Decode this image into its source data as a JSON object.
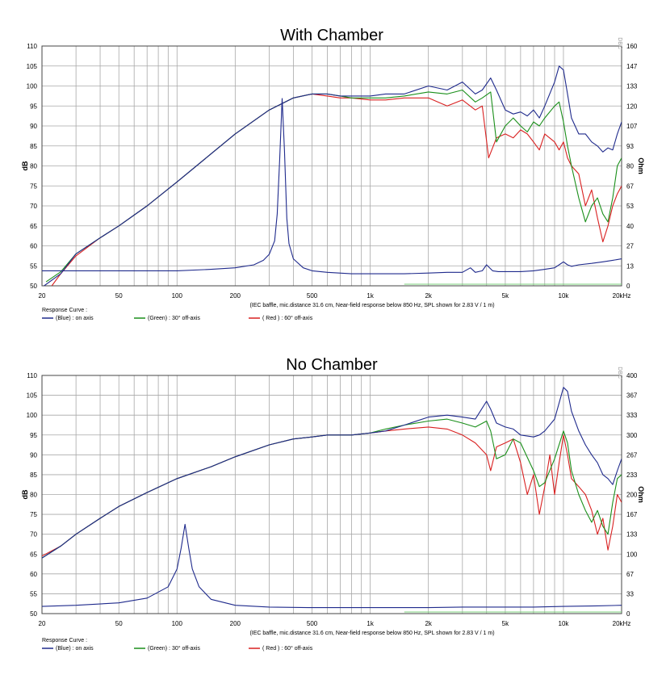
{
  "chart_data": [
    {
      "type": "line",
      "title": "With Chamber",
      "xlabel": "(IEC baffle, mic.distance 31.6 cm, Near-field response below 850 Hz, SPL shown for 2.83 V / 1 m)",
      "ylabel": "dB",
      "y2label": "Ohm",
      "xscale": "log",
      "xlim": [
        20,
        20000
      ],
      "ylim": [
        50,
        110
      ],
      "y2lim": [
        0,
        160
      ],
      "x_ticks": [
        "20",
        "50",
        "100",
        "200",
        "500",
        "1k",
        "2k",
        "5k",
        "10k",
        "20kHz"
      ],
      "y_ticks": [
        "110",
        "105",
        "100",
        "95",
        "90",
        "85",
        "80",
        "75",
        "70",
        "65",
        "60",
        "55",
        "50"
      ],
      "y2_ticks": [
        "160",
        "147",
        "133",
        "120",
        "107",
        "93",
        "80",
        "67",
        "53",
        "40",
        "27",
        "13",
        "0"
      ],
      "watermark": "DBC",
      "legend_title": "Response Curve :",
      "legend": [
        {
          "label": "(Blue) : on axis",
          "color": "#1f2a8c"
        },
        {
          "label": "(Green) : 30° off-axis",
          "color": "#1a8f1a"
        },
        {
          "label": "( Red ) : 60° off-axis",
          "color": "#d92020"
        }
      ],
      "series": [
        {
          "name": "(Blue) : on axis",
          "color": "#1f2a8c",
          "x": [
            20.5,
            25,
            30,
            40,
            50,
            70,
            100,
            150,
            200,
            300,
            400,
            500,
            600,
            700,
            800,
            1000,
            1200,
            1500,
            2000,
            2500,
            3000,
            3500,
            3800,
            4200,
            4500,
            5000,
            5500,
            6000,
            6500,
            7000,
            7500,
            8000,
            9000,
            9500,
            10000,
            10500,
            11000,
            12000,
            13000,
            14000,
            15000,
            16000,
            17000,
            18000,
            19000,
            20000
          ],
          "values": [
            50,
            53,
            58,
            62,
            65,
            70,
            76,
            83,
            88,
            94,
            97,
            98,
            98,
            97.5,
            97.5,
            97.5,
            98,
            98,
            100,
            99,
            101,
            98,
            99,
            102,
            99,
            94,
            93,
            93.5,
            92.5,
            94,
            92,
            95,
            101,
            105,
            104,
            98,
            92,
            88,
            88,
            86,
            85,
            83.5,
            84.5,
            84,
            88,
            91
          ]
        },
        {
          "name": "(Green) : 30° off-axis",
          "color": "#1a8f1a",
          "x": [
            21,
            25,
            30,
            40,
            50,
            70,
            100,
            150,
            200,
            300,
            400,
            500,
            600,
            700,
            800,
            1000,
            1200,
            1500,
            2000,
            2500,
            3000,
            3500,
            3800,
            4200,
            4500,
            5000,
            5500,
            6000,
            6500,
            7000,
            7500,
            8000,
            9000,
            9500,
            10000,
            10500,
            11000,
            12000,
            13000,
            14000,
            15000,
            16000,
            17000,
            18000,
            19000,
            20000
          ],
          "values": [
            51,
            53.5,
            58,
            62,
            65,
            70,
            76,
            83,
            88,
            94,
            97,
            98,
            98,
            97.5,
            97,
            97,
            97,
            97.5,
            98.5,
            98,
            99,
            96,
            97,
            98.5,
            86,
            90,
            92,
            90,
            88.5,
            91,
            90,
            92,
            95,
            96,
            91,
            85,
            80,
            72,
            66,
            70,
            72,
            68,
            66,
            72,
            80,
            82
          ]
        },
        {
          "name": "( Red ) : 60° off-axis",
          "color": "#d92020",
          "x": [
            22.5,
            25,
            30,
            40,
            50,
            70,
            100,
            150,
            200,
            300,
            400,
            500,
            600,
            700,
            800,
            1000,
            1200,
            1500,
            2000,
            2500,
            3000,
            3500,
            3800,
            4100,
            4500,
            5000,
            5500,
            6000,
            6500,
            7000,
            7500,
            8000,
            9000,
            9500,
            10000,
            10500,
            11000,
            12000,
            13000,
            14000,
            15000,
            16000,
            17000,
            18000,
            19000,
            20000
          ],
          "values": [
            50,
            53,
            57.5,
            62,
            65,
            70,
            76,
            83,
            88,
            94,
            97,
            98,
            97.5,
            97,
            97,
            96.5,
            96.5,
            97,
            97,
            95,
            96.5,
            94,
            95,
            82,
            87,
            88,
            87,
            89,
            88,
            86,
            84,
            88,
            86,
            84,
            86,
            82,
            80,
            78,
            70,
            74,
            67,
            61,
            65,
            70,
            73,
            75
          ]
        },
        {
          "name": "Impedance",
          "color": "#1f2a8c",
          "axis": "y2",
          "x": [
            20,
            50,
            100,
            150,
            200,
            250,
            280,
            300,
            320,
            330,
            340,
            350,
            360,
            370,
            380,
            400,
            450,
            500,
            600,
            800,
            1000,
            1500,
            2000,
            2500,
            3000,
            3300,
            3500,
            3800,
            4000,
            4300,
            4600,
            5000,
            6000,
            7000,
            8000,
            9000,
            9500,
            10000,
            10500,
            11000,
            12000,
            14000,
            16000,
            18000,
            20000
          ],
          "values": [
            10,
            10,
            10,
            11,
            12,
            14,
            17,
            21,
            30,
            48,
            85,
            125,
            90,
            45,
            28,
            18,
            12,
            10,
            9,
            8,
            8,
            8,
            8.5,
            9,
            9,
            12,
            9,
            10,
            14,
            10,
            9.5,
            9.5,
            9.5,
            10,
            11,
            12,
            14,
            16,
            14,
            13,
            14,
            15,
            16,
            17,
            18
          ]
        }
      ]
    },
    {
      "type": "line",
      "title": "No Chamber",
      "xlabel": "(IEC baffle, mic.distance 31.6 cm, Near-field response below 850 Hz, SPL shown for 2.83 V / 1 m)",
      "ylabel": "dB",
      "y2label": "Ohm",
      "xscale": "log",
      "xlim": [
        20,
        20000
      ],
      "ylim": [
        50,
        110
      ],
      "y2lim": [
        0,
        400
      ],
      "x_ticks": [
        "20",
        "50",
        "100",
        "200",
        "500",
        "1k",
        "2k",
        "5k",
        "10k",
        "20kHz"
      ],
      "y_ticks": [
        "110",
        "105",
        "100",
        "95",
        "90",
        "85",
        "80",
        "75",
        "70",
        "65",
        "60",
        "55",
        "50"
      ],
      "y2_ticks": [
        "400",
        "367",
        "333",
        "300",
        "267",
        "233",
        "200",
        "167",
        "133",
        "100",
        "67",
        "33",
        "0"
      ],
      "watermark": "DBC",
      "legend_title": "Response Curve :",
      "legend": [
        {
          "label": "(Blue) : on axis",
          "color": "#1f2a8c"
        },
        {
          "label": "(Green) : 30° off-axis",
          "color": "#1a8f1a"
        },
        {
          "label": "( Red ) : 60° off-axis",
          "color": "#d92020"
        }
      ],
      "series": [
        {
          "name": "(Blue) : on axis",
          "color": "#1f2a8c",
          "x": [
            20,
            25,
            30,
            40,
            50,
            70,
            100,
            150,
            200,
            300,
            400,
            500,
            600,
            800,
            1000,
            1200,
            1500,
            2000,
            2500,
            3000,
            3500,
            4000,
            4200,
            4500,
            5000,
            5500,
            6000,
            7000,
            7500,
            8000,
            9000,
            10000,
            10500,
            11000,
            12000,
            13000,
            14000,
            15000,
            16000,
            17000,
            18000,
            19000,
            20000
          ],
          "values": [
            64,
            67,
            70,
            74,
            77,
            80.5,
            84,
            87,
            89.5,
            92.5,
            94,
            94.5,
            95,
            95,
            95.5,
            96,
            97.5,
            99.5,
            100,
            99.5,
            99,
            103.5,
            101.5,
            98,
            97,
            96.5,
            95,
            94.5,
            95,
            96,
            99,
            107,
            106,
            101,
            96,
            92.5,
            90,
            88,
            85,
            84,
            82.5,
            86,
            89
          ]
        },
        {
          "name": "(Green) : 30° off-axis",
          "color": "#1a8f1a",
          "x": [
            20,
            25,
            30,
            40,
            50,
            70,
            100,
            150,
            200,
            300,
            400,
            500,
            600,
            800,
            1000,
            1200,
            1500,
            2000,
            2500,
            3000,
            3500,
            4000,
            4200,
            4500,
            5000,
            5500,
            6000,
            7000,
            7500,
            8000,
            9000,
            10000,
            10500,
            11000,
            12000,
            13000,
            14000,
            15000,
            16000,
            17000,
            18000,
            19000,
            20000
          ],
          "values": [
            64,
            67,
            70,
            74,
            77,
            80.5,
            84,
            87,
            89.5,
            92.5,
            94,
            94.5,
            95,
            95,
            95.5,
            96.5,
            97.5,
            98.5,
            99,
            98,
            97,
            98.5,
            96,
            89,
            90,
            94,
            93,
            86,
            82,
            83,
            89,
            96,
            93,
            86,
            80,
            76,
            73,
            76,
            72,
            70,
            78,
            84,
            85
          ]
        },
        {
          "name": "( Red ) : 60° off-axis",
          "color": "#d92020",
          "x": [
            20,
            25,
            30,
            40,
            50,
            70,
            100,
            150,
            200,
            300,
            400,
            500,
            600,
            800,
            1000,
            1200,
            1500,
            2000,
            2500,
            3000,
            3500,
            4000,
            4200,
            4500,
            5000,
            5500,
            6000,
            6500,
            7000,
            7500,
            8000,
            8500,
            9000,
            9500,
            10000,
            10500,
            11000,
            12000,
            13000,
            14000,
            15000,
            16000,
            17000,
            18000,
            19000,
            20000
          ],
          "values": [
            64.5,
            67,
            70,
            74,
            77,
            80.5,
            84,
            87,
            89.5,
            92.5,
            94,
            94.5,
            95,
            95,
            95.5,
            96,
            96.5,
            97,
            96.5,
            95,
            93,
            90,
            86,
            92,
            93,
            94,
            88,
            80,
            85,
            75,
            82,
            90,
            80,
            88,
            95,
            90,
            84,
            82,
            80,
            76,
            70,
            74,
            66,
            72,
            80,
            78
          ]
        },
        {
          "name": "Impedance",
          "color": "#1f2a8c",
          "axis": "y2",
          "x": [
            20,
            30,
            50,
            70,
            90,
            100,
            105,
            110,
            115,
            120,
            130,
            150,
            200,
            300,
            500,
            1000,
            2000,
            3000,
            4000,
            5000,
            7000,
            10000,
            15000,
            20000
          ],
          "values": [
            12,
            14,
            18,
            26,
            45,
            75,
            110,
            150,
            110,
            75,
            45,
            24,
            14,
            11,
            10,
            10,
            10,
            11,
            11,
            11,
            11,
            12,
            13,
            14
          ]
        }
      ]
    }
  ]
}
